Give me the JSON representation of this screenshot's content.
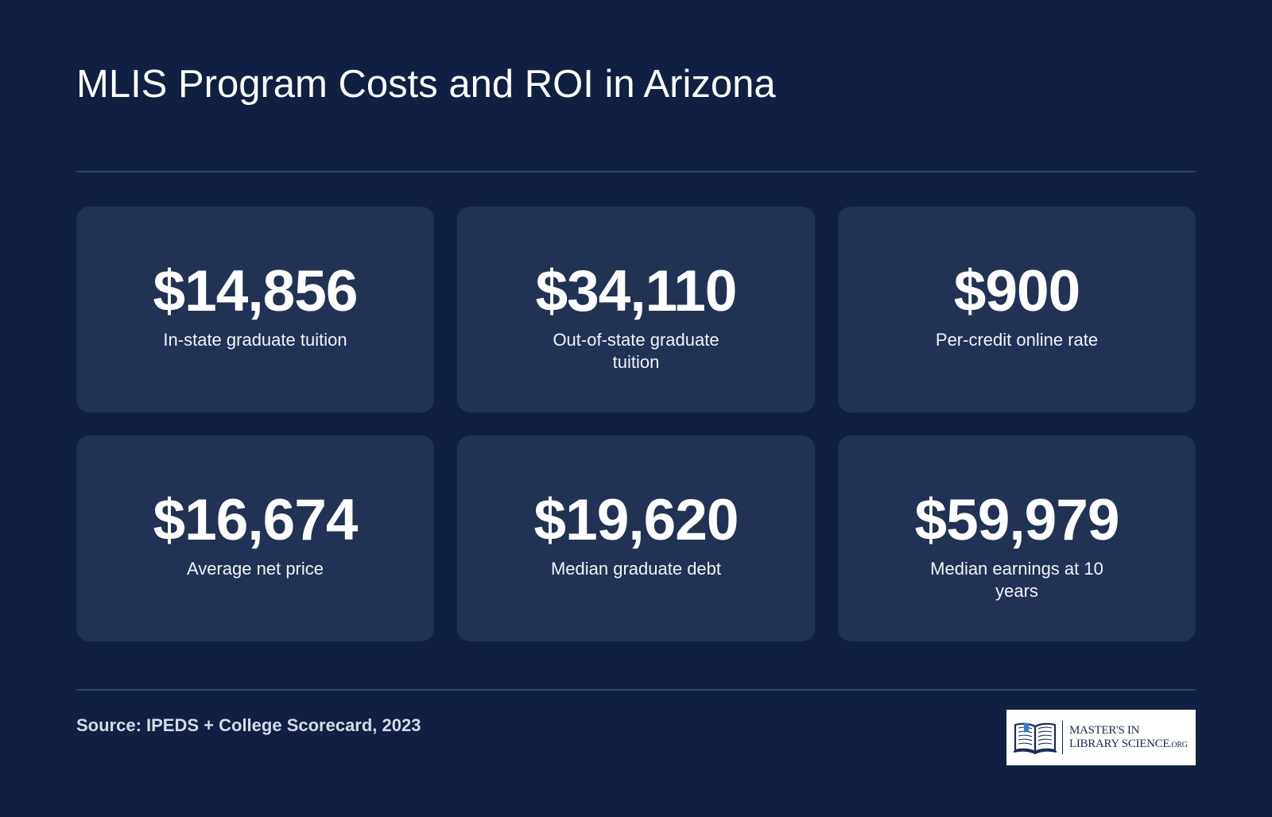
{
  "title": "MLIS Program Costs and ROI in Arizona",
  "stats": [
    {
      "value": "$14,856",
      "label": "In-state graduate tuition"
    },
    {
      "value": "$34,110",
      "label": "Out-of-state graduate tuition"
    },
    {
      "value": "$900",
      "label": "Per-credit online rate"
    },
    {
      "value": "$16,674",
      "label": "Average net price"
    },
    {
      "value": "$19,620",
      "label": "Median graduate debt"
    },
    {
      "value": "$59,979",
      "label": "Median earnings at 10 years"
    }
  ],
  "source": "Source: IPEDS + College Scorecard, 2023",
  "logo": {
    "line1": "MASTER'S IN",
    "line2": "LIBRARY SCIENCE",
    "suffix": ".ORG",
    "icon": "open-book-icon"
  },
  "colors": {
    "background": "#111f42",
    "card": "#223254",
    "text": "#ffffff",
    "logo_ink": "#1c2b55"
  }
}
